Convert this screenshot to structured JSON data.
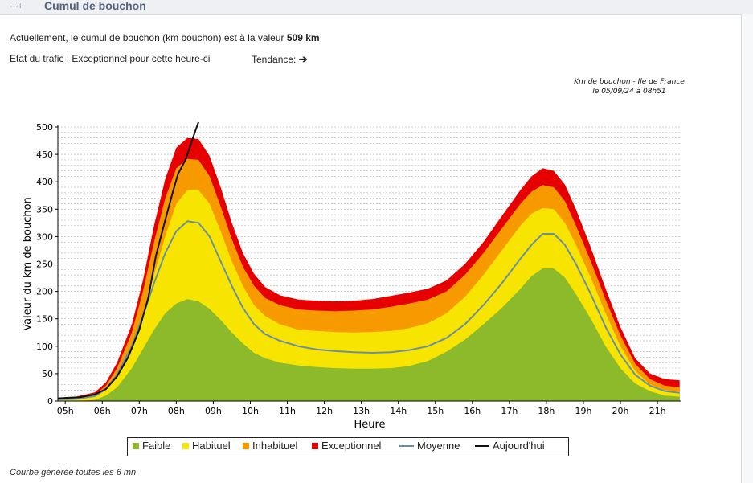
{
  "header": {
    "title": "Cumul de bouchon",
    "icon": "dotted-arrow-icon"
  },
  "info": {
    "prefix": "Actuellement, le cumul de bouchon (km bouchon) est à la valeur ",
    "value": "509 km",
    "etat": "Etat du trafic : Exceptionnel pour cette heure-ci",
    "tendance_label": "Tendance:",
    "tendance_arrow": "➔"
  },
  "footer": {
    "note": "Courbe générée toutes les 6 mn"
  },
  "colors": {
    "faible": "#8dba2a",
    "habituel": "#f7e400",
    "inhabituel": "#f79a00",
    "exceptionnel": "#e60000",
    "moyenne": "#6b8fa0",
    "aujourdhui": "#111111",
    "grid": "#bcbcbc"
  },
  "chart_data": {
    "type": "area",
    "title": "Km de bouchon - Ile de France",
    "subtitle": "le 05/09/24 à 08h51",
    "xlabel": "Heure",
    "ylabel": "Valeur du  km de bouchon",
    "xlim": [
      5.0,
      21.85
    ],
    "ylim": [
      0,
      500
    ],
    "yticks": [
      0,
      50,
      100,
      150,
      200,
      250,
      300,
      350,
      400,
      450,
      500
    ],
    "xticks": [
      {
        "v": 5.2,
        "label": "05h"
      },
      {
        "v": 6.2,
        "label": "06h"
      },
      {
        "v": 7.2,
        "label": "07h"
      },
      {
        "v": 8.2,
        "label": "08h"
      },
      {
        "v": 9.2,
        "label": "09h"
      },
      {
        "v": 10.2,
        "label": "10h"
      },
      {
        "v": 11.2,
        "label": "11h"
      },
      {
        "v": 12.2,
        "label": "12h"
      },
      {
        "v": 13.2,
        "label": "13h"
      },
      {
        "v": 14.2,
        "label": "14h"
      },
      {
        "v": 15.2,
        "label": "15h"
      },
      {
        "v": 16.2,
        "label": "16h"
      },
      {
        "v": 17.2,
        "label": "17h"
      },
      {
        "v": 18.2,
        "label": "18h"
      },
      {
        "v": 19.2,
        "label": "19h"
      },
      {
        "v": 20.2,
        "label": "20h"
      },
      {
        "v": 21.2,
        "label": "21h"
      }
    ],
    "grid": true,
    "x": [
      5.0,
      5.5,
      6.0,
      6.3,
      6.6,
      7.0,
      7.3,
      7.6,
      7.9,
      8.2,
      8.5,
      8.8,
      9.1,
      9.4,
      9.7,
      10.0,
      10.3,
      10.6,
      11.0,
      11.5,
      12.0,
      12.5,
      13.0,
      13.5,
      14.0,
      14.5,
      15.0,
      15.5,
      16.0,
      16.5,
      17.0,
      17.5,
      17.8,
      18.1,
      18.4,
      18.7,
      19.0,
      19.4,
      19.8,
      20.2,
      20.6,
      21.0,
      21.4,
      21.8
    ],
    "series": [
      {
        "name": "Faible",
        "kind": "band",
        "values": [
          0,
          0,
          2,
          10,
          25,
          60,
          95,
          130,
          160,
          178,
          186,
          182,
          168,
          148,
          125,
          105,
          88,
          78,
          70,
          65,
          62,
          60,
          59,
          59,
          60,
          64,
          73,
          90,
          112,
          140,
          170,
          205,
          228,
          242,
          242,
          225,
          195,
          150,
          100,
          60,
          32,
          18,
          10,
          8
        ]
      },
      {
        "name": "Habituel",
        "kind": "band",
        "values": [
          2,
          3,
          8,
          20,
          45,
          100,
          160,
          230,
          300,
          360,
          385,
          385,
          360,
          310,
          255,
          210,
          175,
          155,
          140,
          130,
          128,
          126,
          125,
          126,
          128,
          133,
          142,
          160,
          190,
          230,
          275,
          320,
          342,
          352,
          350,
          325,
          285,
          225,
          160,
          100,
          55,
          30,
          20,
          17
        ]
      },
      {
        "name": "Inhabituel",
        "kind": "band",
        "values": [
          4,
          5,
          12,
          28,
          60,
          125,
          200,
          290,
          370,
          425,
          442,
          440,
          410,
          355,
          295,
          245,
          210,
          188,
          175,
          167,
          165,
          164,
          165,
          167,
          172,
          178,
          185,
          200,
          230,
          270,
          315,
          360,
          382,
          394,
          390,
          365,
          320,
          255,
          185,
          120,
          68,
          40,
          28,
          25
        ]
      },
      {
        "name": "Exceptionnel",
        "kind": "band",
        "values": [
          6,
          8,
          16,
          34,
          70,
          140,
          220,
          320,
          405,
          462,
          480,
          478,
          447,
          390,
          325,
          270,
          232,
          208,
          193,
          185,
          183,
          182,
          183,
          186,
          192,
          198,
          205,
          220,
          250,
          290,
          338,
          385,
          410,
          425,
          420,
          395,
          350,
          280,
          205,
          135,
          78,
          50,
          40,
          38
        ]
      },
      {
        "name": "Moyenne",
        "kind": "line",
        "values": [
          3,
          4,
          9,
          22,
          48,
          100,
          155,
          215,
          270,
          310,
          328,
          325,
          300,
          255,
          210,
          170,
          140,
          122,
          110,
          100,
          94,
          91,
          89,
          88,
          89,
          93,
          100,
          115,
          140,
          175,
          215,
          260,
          285,
          305,
          305,
          285,
          250,
          195,
          135,
          85,
          48,
          28,
          18,
          15
        ]
      },
      {
        "name": "Aujourd'hui",
        "kind": "line",
        "x": [
          5.0,
          5.3,
          5.6,
          6.0,
          6.3,
          6.6,
          6.9,
          7.2,
          7.45,
          7.65,
          7.9,
          8.1,
          8.25,
          8.45,
          8.6,
          8.7,
          8.8
        ],
        "values": [
          5,
          6,
          7,
          12,
          22,
          45,
          80,
          130,
          190,
          265,
          330,
          380,
          415,
          440,
          470,
          490,
          509
        ]
      }
    ],
    "legend": [
      "Faible",
      "Habituel",
      "Inhabituel",
      "Exceptionnel",
      "Moyenne",
      "Aujourd'hui"
    ],
    "legend_position": "bottom"
  }
}
